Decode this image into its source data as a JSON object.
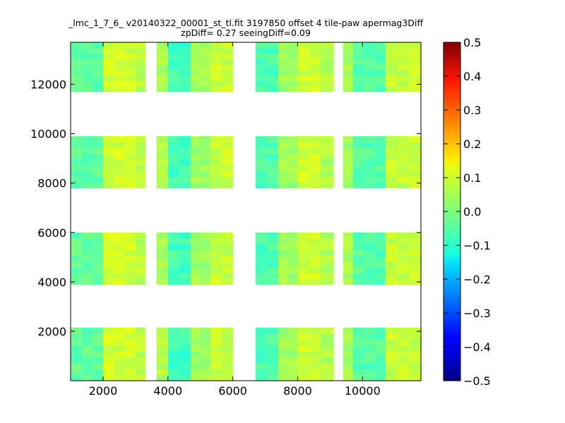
{
  "chart_data": {
    "type": "heatmap",
    "title": "_lmc_1_7_6_ v20140322_00001_st_tl.fit 3197850 offset 4 tile-paw apermag3Diff",
    "subtitle": "zpDiff= 0.27 seeingDiff=0.09",
    "xlabel": "",
    "ylabel": "",
    "xlim": [
      1000,
      11800
    ],
    "ylim": [
      0,
      13700
    ],
    "x_ticks": [
      "2000",
      "4000",
      "6000",
      "8000",
      "10000"
    ],
    "y_ticks": [
      "2000",
      "4000",
      "6000",
      "8000",
      "10000",
      "12000"
    ],
    "colorbar": {
      "colormap": "jet",
      "range": [
        -0.5,
        0.5
      ],
      "ticks": [
        "0.5",
        "0.4",
        "0.3",
        "0.2",
        "0.1",
        "0.0",
        "−0.1",
        "−0.2",
        "−0.3",
        "−0.4",
        "−0.5"
      ]
    },
    "detector_columns": [
      {
        "x": [
          1000,
          2000
        ],
        "mean": -0.03
      },
      {
        "x": [
          2000,
          3000
        ],
        "mean": 0.08
      },
      {
        "x": [
          3000,
          3300
        ],
        "mean": 0.06
      },
      {
        "x": [
          3650,
          4000
        ],
        "mean": 0.05
      },
      {
        "x": [
          4000,
          4700
        ],
        "mean": -0.06
      },
      {
        "x": [
          4700,
          5300
        ],
        "mean": 0.03
      },
      {
        "x": [
          5300,
          6000
        ],
        "mean": 0.07
      },
      {
        "x": [
          6700,
          7400
        ],
        "mean": -0.05
      },
      {
        "x": [
          7400,
          8000
        ],
        "mean": 0.03
      },
      {
        "x": [
          8000,
          8700
        ],
        "mean": 0.08
      },
      {
        "x": [
          8700,
          9100
        ],
        "mean": 0.05
      },
      {
        "x": [
          9400,
          9700
        ],
        "mean": 0.04
      },
      {
        "x": [
          9700,
          10700
        ],
        "mean": -0.04
      },
      {
        "x": [
          10700,
          11800
        ],
        "mean": 0.07
      }
    ],
    "detector_rows": [
      {
        "y": [
          0,
          2150
        ]
      },
      {
        "y": [
          3900,
          6000
        ]
      },
      {
        "y": [
          7800,
          9900
        ]
      },
      {
        "y": [
          11700,
          13700
        ]
      }
    ]
  }
}
